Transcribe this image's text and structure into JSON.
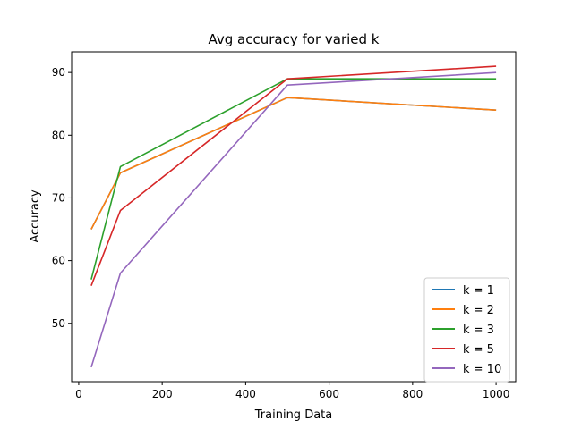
{
  "chart_data": {
    "type": "line",
    "title": "Avg accuracy for varied k",
    "xlabel": "Training Data",
    "ylabel": "Accuracy",
    "xlim": [
      -17,
      1047
    ],
    "ylim": [
      40.7,
      93.3
    ],
    "xticks": [
      0,
      200,
      400,
      600,
      800,
      1000
    ],
    "yticks": [
      50,
      60,
      70,
      80,
      90
    ],
    "grid": false,
    "legend_position": "lower-right",
    "x": [
      30,
      100,
      500,
      1000
    ],
    "series": [
      {
        "name": "k = 1",
        "color": "#1f77b4",
        "values": [
          65,
          74,
          86,
          84
        ]
      },
      {
        "name": "k = 2",
        "color": "#ff7f0e",
        "values": [
          65,
          74,
          86,
          84
        ]
      },
      {
        "name": "k = 3",
        "color": "#2ca02c",
        "values": [
          57,
          75,
          89,
          89
        ]
      },
      {
        "name": "k = 5",
        "color": "#d62728",
        "values": [
          56,
          68,
          89,
          91
        ]
      },
      {
        "name": "k = 10",
        "color": "#9467bd",
        "values": [
          43,
          58,
          88,
          90
        ]
      }
    ]
  }
}
